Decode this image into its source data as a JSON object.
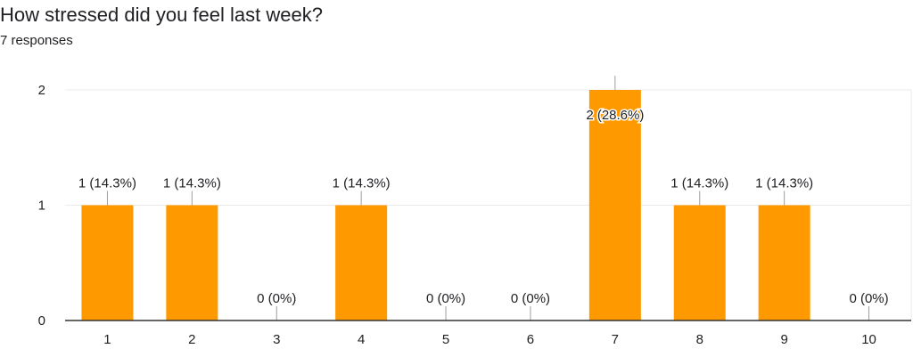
{
  "header": {
    "question": "How stressed did you feel last week?",
    "responses": "7 responses"
  },
  "colors": {
    "bar": "#ff9900",
    "grid": "#ebebeb",
    "axis": "#333333",
    "stem": "#9e9e9e"
  },
  "chart_data": {
    "type": "bar",
    "title": "How stressed did you feel last week?",
    "subtitle": "7 responses",
    "categories": [
      "1",
      "2",
      "3",
      "4",
      "5",
      "6",
      "7",
      "8",
      "9",
      "10"
    ],
    "values": [
      1,
      1,
      0,
      1,
      0,
      0,
      2,
      1,
      1,
      0
    ],
    "data_labels": [
      "1 (14.3%)",
      "1 (14.3%)",
      "0 (0%)",
      "1 (14.3%)",
      "0 (0%)",
      "0 (0%)",
      "2 (28.6%)",
      "1 (14.3%)",
      "1 (14.3%)",
      "0 (0%)"
    ],
    "ylim": [
      0,
      2
    ],
    "yticks": [
      0,
      1,
      2
    ],
    "xlabel": "",
    "ylabel": "",
    "grid": true,
    "legend": "none"
  }
}
